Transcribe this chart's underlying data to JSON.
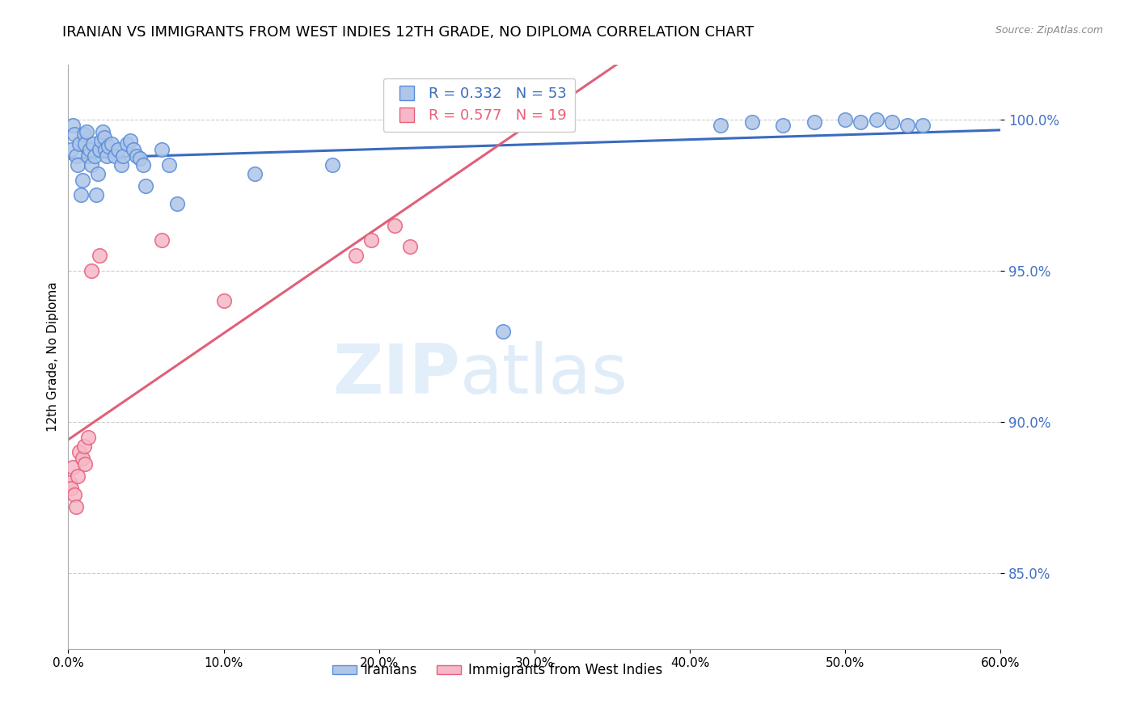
{
  "title": "IRANIAN VS IMMIGRANTS FROM WEST INDIES 12TH GRADE, NO DIPLOMA CORRELATION CHART",
  "source": "Source: ZipAtlas.com",
  "ylabel": "12th Grade, No Diploma",
  "xlim": [
    0.0,
    0.6
  ],
  "ylim": [
    0.825,
    1.018
  ],
  "yticks": [
    0.85,
    0.9,
    0.95,
    1.0
  ],
  "xticks": [
    0.0,
    0.1,
    0.2,
    0.3,
    0.4,
    0.5,
    0.6
  ],
  "iranian_R": 0.332,
  "iranian_N": 53,
  "westindies_R": 0.577,
  "westindies_N": 19,
  "iranian_color": "#aec6e8",
  "iranian_edge_color": "#5b8dd9",
  "westindies_color": "#f5b8c8",
  "westindies_edge_color": "#e8607a",
  "iranian_line_color": "#3a6bbf",
  "westindies_line_color": "#e0607a",
  "legend_label_iranian": "Iranians",
  "legend_label_westindies": "Immigrants from West Indies",
  "watermark_zip": "ZIP",
  "watermark_atlas": "atlas",
  "iranian_x": [
    0.002,
    0.003,
    0.004,
    0.005,
    0.006,
    0.007,
    0.008,
    0.009,
    0.01,
    0.011,
    0.012,
    0.013,
    0.014,
    0.015,
    0.016,
    0.017,
    0.018,
    0.019,
    0.02,
    0.021,
    0.022,
    0.023,
    0.024,
    0.025,
    0.026,
    0.028,
    0.03,
    0.032,
    0.034,
    0.035,
    0.038,
    0.04,
    0.042,
    0.044,
    0.046,
    0.048,
    0.05,
    0.06,
    0.065,
    0.07,
    0.12,
    0.17,
    0.28,
    0.42,
    0.44,
    0.46,
    0.48,
    0.5,
    0.51,
    0.52,
    0.53,
    0.54,
    0.55
  ],
  "iranian_y": [
    0.99,
    0.998,
    0.995,
    0.988,
    0.985,
    0.992,
    0.975,
    0.98,
    0.995,
    0.992,
    0.996,
    0.988,
    0.99,
    0.985,
    0.992,
    0.988,
    0.975,
    0.982,
    0.99,
    0.993,
    0.996,
    0.994,
    0.99,
    0.988,
    0.991,
    0.992,
    0.988,
    0.99,
    0.985,
    0.988,
    0.992,
    0.993,
    0.99,
    0.988,
    0.987,
    0.985,
    0.978,
    0.99,
    0.985,
    0.972,
    0.982,
    0.985,
    0.93,
    0.998,
    0.999,
    0.998,
    0.999,
    1.0,
    0.999,
    1.0,
    0.999,
    0.998,
    0.998
  ],
  "westindies_x": [
    0.001,
    0.002,
    0.003,
    0.004,
    0.005,
    0.006,
    0.007,
    0.009,
    0.01,
    0.011,
    0.013,
    0.015,
    0.02,
    0.06,
    0.1,
    0.185,
    0.195,
    0.21,
    0.22
  ],
  "westindies_y": [
    0.88,
    0.878,
    0.885,
    0.876,
    0.872,
    0.882,
    0.89,
    0.888,
    0.892,
    0.886,
    0.895,
    0.95,
    0.955,
    0.96,
    0.94,
    0.955,
    0.96,
    0.965,
    0.958
  ]
}
